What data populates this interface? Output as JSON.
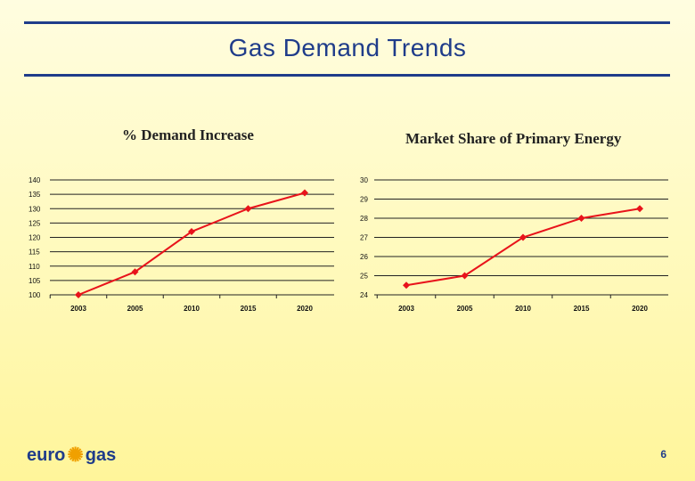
{
  "slide": {
    "title": "Gas Demand Trends",
    "page_number": "6"
  },
  "logo": {
    "left": "euro",
    "right": "gas",
    "icon": "star-burst-icon"
  },
  "colors": {
    "accent": "#1f3c8a",
    "series": "#e8131b",
    "marker": "#e8131b"
  },
  "chart_data": [
    {
      "type": "line",
      "title": "% Demand Increase",
      "categories": [
        "2003",
        "2005",
        "2010",
        "2015",
        "2020"
      ],
      "series": [
        {
          "values": [
            100,
            108,
            122,
            130,
            135.5
          ]
        }
      ],
      "ylim": [
        100,
        140
      ],
      "yticks": [
        100,
        105,
        110,
        115,
        120,
        125,
        130,
        135,
        140
      ],
      "grid": "horizontal"
    },
    {
      "type": "line",
      "title": "Market Share of Primary Energy",
      "categories": [
        "2003",
        "2005",
        "2010",
        "2015",
        "2020"
      ],
      "series": [
        {
          "values": [
            24.5,
            25,
            27,
            28,
            28.5
          ]
        }
      ],
      "ylim": [
        24,
        30
      ],
      "yticks": [
        24,
        25,
        26,
        27,
        28,
        29,
        30
      ],
      "grid": "horizontal"
    }
  ]
}
